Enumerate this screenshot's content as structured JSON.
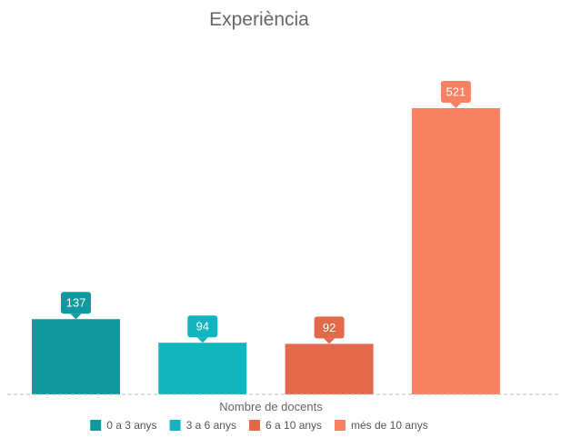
{
  "chart_data": {
    "type": "bar",
    "title": "Experiència",
    "xlabel": "Nombre de docents",
    "ylabel": "",
    "categories": [
      "0 a 3 anys",
      "3 a 6 anys",
      "6 a 10 anys",
      "més de 10 anys"
    ],
    "values": [
      137,
      94,
      92,
      521
    ],
    "colors": [
      "#0f9aa0",
      "#10b5bd",
      "#e4694a",
      "#fa8264"
    ],
    "ylim": [
      0,
      521
    ],
    "grid": false,
    "legend": "bottom-center",
    "data_labels": true
  }
}
